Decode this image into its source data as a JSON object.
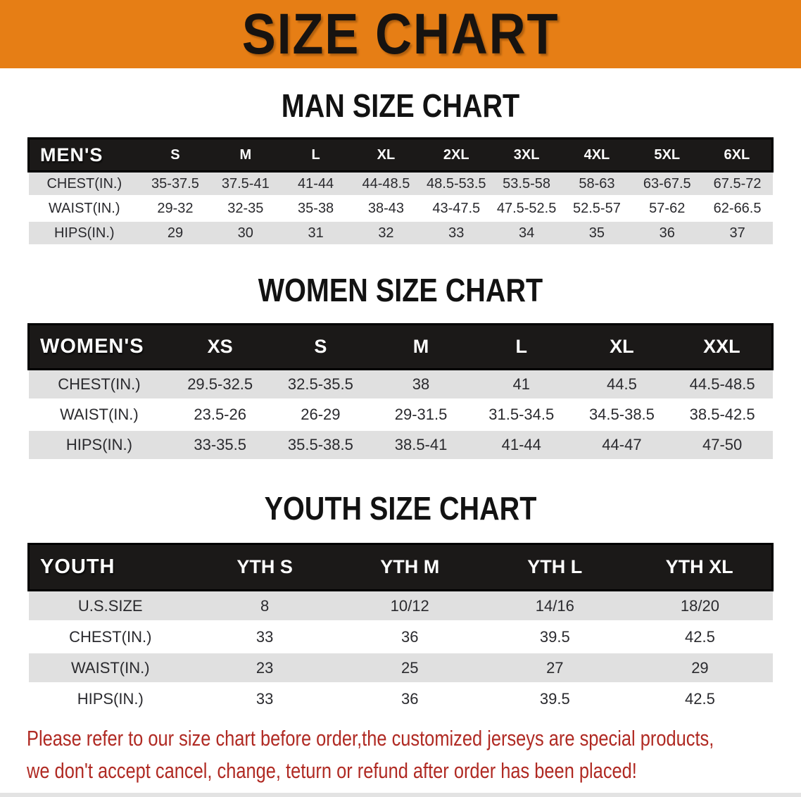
{
  "banner": {
    "title": "SIZE CHART"
  },
  "sections": [
    {
      "key": "men",
      "heading": "MAN SIZE CHART",
      "label": "MEN'S",
      "columns": [
        "S",
        "M",
        "L",
        "XL",
        "2XL",
        "3XL",
        "4XL",
        "5XL",
        "6XL"
      ],
      "rows": [
        {
          "label": "CHEST(IN.)",
          "values": [
            "35-37.5",
            "37.5-41",
            "41-44",
            "44-48.5",
            "48.5-53.5",
            "53.5-58",
            "58-63",
            "63-67.5",
            "67.5-72"
          ]
        },
        {
          "label": "WAIST(IN.)",
          "values": [
            "29-32",
            "32-35",
            "35-38",
            "38-43",
            "43-47.5",
            "47.5-52.5",
            "52.5-57",
            "57-62",
            "62-66.5"
          ]
        },
        {
          "label": "HIPS(IN.)",
          "values": [
            "29",
            "30",
            "31",
            "32",
            "33",
            "34",
            "35",
            "36",
            "37"
          ]
        }
      ]
    },
    {
      "key": "women",
      "heading": "WOMEN SIZE CHART",
      "label": "WOMEN'S",
      "columns": [
        "XS",
        "S",
        "M",
        "L",
        "XL",
        "XXL"
      ],
      "rows": [
        {
          "label": "CHEST(IN.)",
          "values": [
            "29.5-32.5",
            "32.5-35.5",
            "38",
            "41",
            "44.5",
            "44.5-48.5"
          ]
        },
        {
          "label": "WAIST(IN.)",
          "values": [
            "23.5-26",
            "26-29",
            "29-31.5",
            "31.5-34.5",
            "34.5-38.5",
            "38.5-42.5"
          ]
        },
        {
          "label": "HIPS(IN.)",
          "values": [
            "33-35.5",
            "35.5-38.5",
            "38.5-41",
            "41-44",
            "44-47",
            "47-50"
          ]
        }
      ]
    },
    {
      "key": "youth",
      "heading": "YOUTH SIZE CHART",
      "label": "YOUTH",
      "columns": [
        "YTH S",
        "YTH M",
        "YTH L",
        "YTH XL"
      ],
      "rows": [
        {
          "label": "U.S.SIZE",
          "values": [
            "8",
            "10/12",
            "14/16",
            "18/20"
          ]
        },
        {
          "label": "CHEST(IN.)",
          "values": [
            "33",
            "36",
            "39.5",
            "42.5"
          ]
        },
        {
          "label": "WAIST(IN.)",
          "values": [
            "23",
            "25",
            "27",
            "29"
          ]
        },
        {
          "label": "HIPS(IN.)",
          "values": [
            "33",
            "36",
            "39.5",
            "42.5"
          ]
        }
      ]
    }
  ],
  "disclaimer": {
    "line1": "Please refer to our size chart before order,the customized jerseys are special products,",
    "line2": "we don't accept cancel, change, teturn or refund after order has been placed!"
  },
  "colors": {
    "banner_bg": "#E67E15",
    "table_header_bg": "#1B1918",
    "row_gray": "#E0E0E0",
    "disclaimer_red": "#B02A23"
  }
}
